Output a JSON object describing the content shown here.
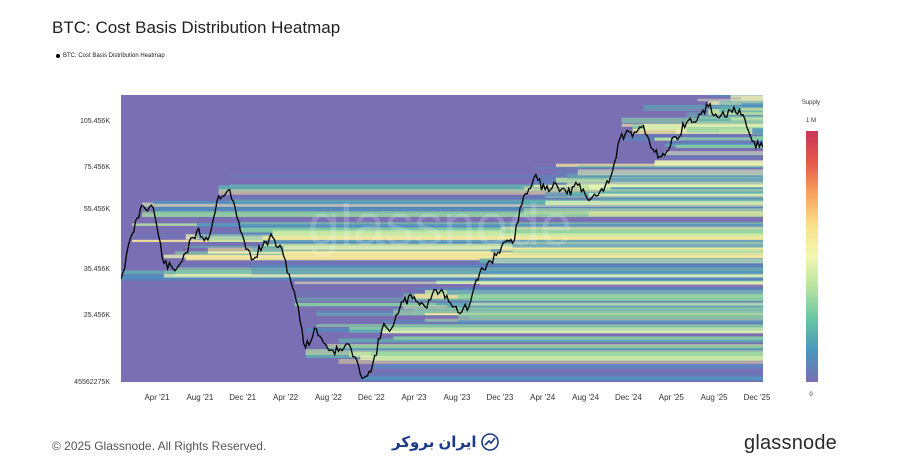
{
  "header": {
    "title": "BTC: Cost Basis Distribution Heatmap",
    "legend_label": "BTC: Cost Basis Distribution Heatmap"
  },
  "footer": {
    "copyright": "© 2025 Glassnode. All Rights Reserved.",
    "partner_logo_text": "ایران بروکر",
    "brand": "glassnode",
    "watermark": "glassnode"
  },
  "colorbar": {
    "label": "Supply",
    "max_label": "1 M",
    "min_label": "0",
    "colors": [
      "#7a6fb3",
      "#4a96bd",
      "#68c6a4",
      "#b6e3a0",
      "#f2f7b3",
      "#fbe08a",
      "#f8a35f",
      "#e6594a",
      "#c8375a"
    ]
  },
  "chart_data": {
    "type": "heatmap",
    "title": "BTC: Cost Basis Distribution Heatmap",
    "x_ticks": [
      "Apr '21",
      "Aug '21",
      "Dec '21",
      "Apr '22",
      "Aug '22",
      "Dec '22",
      "Apr '23",
      "Aug '23",
      "Dec '23",
      "Apr '24",
      "Aug '24",
      "Dec '24",
      "Apr '25",
      "Aug '25",
      "Dec '25"
    ],
    "y_ticks": [
      "105.456K",
      "75.456K",
      "55.456K",
      "35.456K",
      "25.456K",
      "45562275K"
    ],
    "x_range": [
      "2021-01",
      "2025-12"
    ],
    "y_scale": "log",
    "background_color": "#7b6fb4",
    "series": [
      {
        "name": "BTC: Cost Basis Distribution Heatmap",
        "x": [
          "2021-01",
          "2021-02",
          "2021-03",
          "2021-04",
          "2021-05",
          "2021-06",
          "2021-07",
          "2021-08",
          "2021-09",
          "2021-10",
          "2021-11",
          "2021-12",
          "2022-01",
          "2022-02",
          "2022-03",
          "2022-04",
          "2022-05",
          "2022-06",
          "2022-07",
          "2022-08",
          "2022-09",
          "2022-10",
          "2022-11",
          "2022-12",
          "2023-01",
          "2023-02",
          "2023-03",
          "2023-04",
          "2023-05",
          "2023-06",
          "2023-07",
          "2023-08",
          "2023-09",
          "2023-10",
          "2023-11",
          "2023-12",
          "2024-01",
          "2024-02",
          "2024-03",
          "2024-04",
          "2024-05",
          "2024-06",
          "2024-07",
          "2024-08",
          "2024-09",
          "2024-10",
          "2024-11",
          "2024-12",
          "2025-01",
          "2025-02",
          "2025-03",
          "2025-04",
          "2025-05",
          "2025-06",
          "2025-07",
          "2025-08",
          "2025-09",
          "2025-10",
          "2025-11",
          "2025-12"
        ],
        "y": [
          33000,
          46000,
          57000,
          56000,
          37000,
          35000,
          40000,
          47000,
          44000,
          61000,
          64000,
          47000,
          38000,
          42000,
          45000,
          39000,
          30000,
          20000,
          23000,
          20000,
          19500,
          20500,
          16500,
          16800,
          23000,
          23500,
          28000,
          29000,
          27000,
          30500,
          29300,
          26000,
          27000,
          34500,
          37500,
          42000,
          43000,
          61000,
          70000,
          64000,
          67000,
          62000,
          66000,
          59000,
          63000,
          70000,
          96000,
          94000,
          102000,
          84000,
          82000,
          94000,
          104000,
          107000,
          117000,
          108000,
          114000,
          110000,
          91000,
          87000
        ]
      }
    ]
  }
}
